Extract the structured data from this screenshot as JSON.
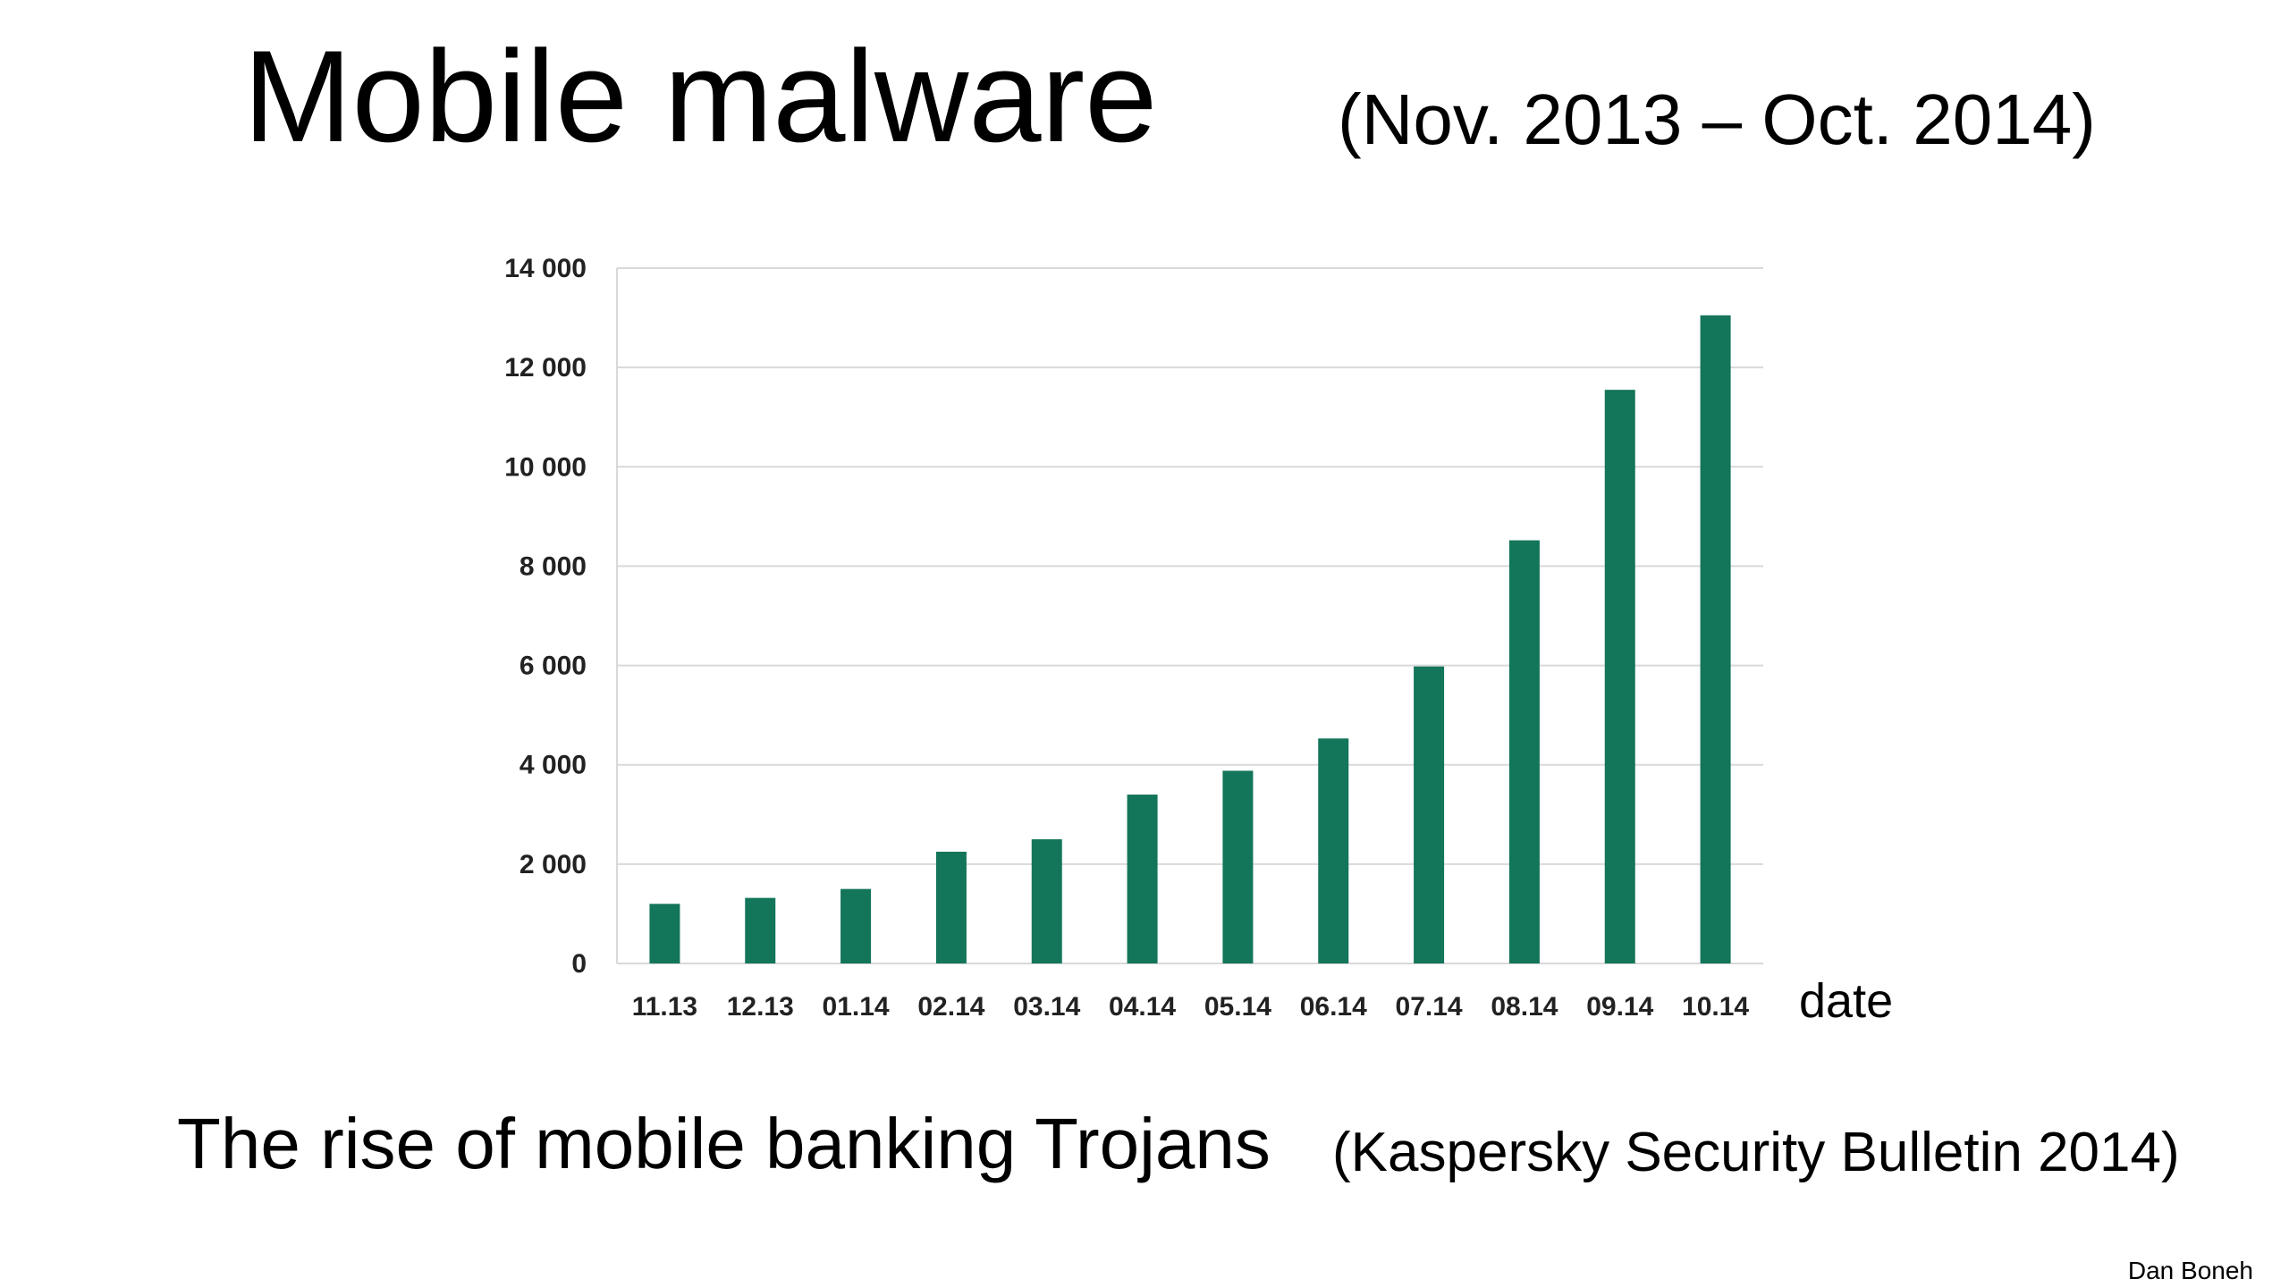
{
  "slide": {
    "title": "Mobile malware",
    "subtitle": "(Nov. 2013 – Oct. 2014)",
    "caption": "The rise of mobile banking Trojans",
    "source": "(Kaspersky Security Bulletin 2014)",
    "author": "Dan Boneh"
  },
  "chart_data": {
    "type": "bar",
    "categories": [
      "11.13",
      "12.13",
      "01.14",
      "02.14",
      "03.14",
      "04.14",
      "05.14",
      "06.14",
      "07.14",
      "08.14",
      "09.14",
      "10.14"
    ],
    "values": [
      1200,
      1320,
      1500,
      2250,
      2500,
      3400,
      3880,
      4530,
      5980,
      8520,
      11550,
      13050
    ],
    "ylim": [
      0,
      14000
    ],
    "yticks": [
      0,
      2000,
      4000,
      6000,
      8000,
      10000,
      12000,
      14000
    ],
    "ytick_labels": [
      "0",
      "2 000",
      "4 000",
      "6 000",
      "8 000",
      "10 000",
      "12 000",
      "14 000"
    ],
    "xlabel": "date",
    "ylabel": "",
    "title": "",
    "grid": true,
    "bar_color": "#13755a",
    "grid_color": "#d9d9d9"
  }
}
